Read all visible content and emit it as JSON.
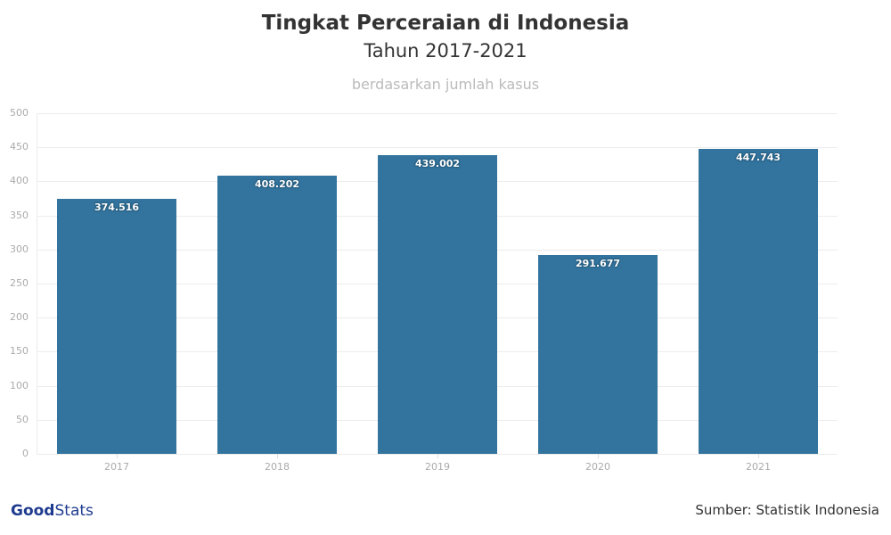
{
  "header": {
    "title": "Tingkat Perceraian di Indonesia",
    "subtitle": "Tahun 2017-2021",
    "caption": "berdasarkan jumlah kasus"
  },
  "footer": {
    "logo_bold": "Good",
    "logo_light": "Stats",
    "source": "Sumber: Statistik Indonesia"
  },
  "colors": {
    "bar": "#33749e",
    "title": "#333333",
    "caption": "#bbbbbb"
  },
  "chart_data": {
    "type": "bar",
    "title": "Tingkat Perceraian di Indonesia",
    "subtitle": "Tahun 2017-2021",
    "caption": "berdasarkan jumlah kasus",
    "categories": [
      "2017",
      "2018",
      "2019",
      "2020",
      "2021"
    ],
    "values": [
      374.516,
      408.202,
      439.002,
      291.677,
      447.743
    ],
    "labels": [
      "374.516",
      "408.202",
      "439.002",
      "291.677",
      "447.743"
    ],
    "xlabel": "",
    "ylabel": "",
    "ylim": [
      0,
      500
    ],
    "yticks": [
      "0",
      "50",
      "100",
      "150",
      "200",
      "250",
      "300",
      "350",
      "400",
      "450",
      "500"
    ],
    "grid": true,
    "legend": "none",
    "source": "Sumber: Statistik Indonesia"
  }
}
